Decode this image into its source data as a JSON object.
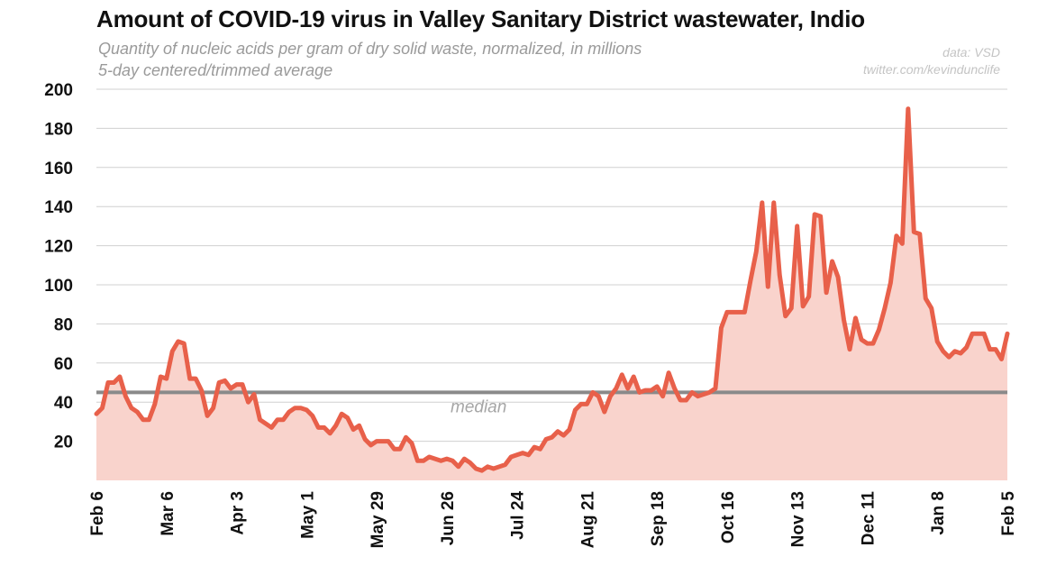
{
  "colors": {
    "line": "#e8604a",
    "fill": "#f9d3cc",
    "median_line": "#8a8a8a",
    "grid": "#d0d0d0"
  },
  "chart_data": {
    "type": "area",
    "title": "Amount of COVID-19 virus in Valley Sanitary District wastewater, Indio",
    "subtitle": [
      "Quantity of nucleic acids per gram of dry solid waste, normalized, in millions",
      "5-day centered/trimmed average"
    ],
    "credits": [
      "data: VSD",
      "twitter.com/kevindunclife"
    ],
    "xlabel": "",
    "ylabel": "",
    "ylim": [
      0,
      200
    ],
    "yticks": [
      20,
      40,
      60,
      80,
      100,
      120,
      140,
      160,
      180,
      200
    ],
    "xtick_labels": [
      "Feb 6",
      "Mar 6",
      "Apr 3",
      "May 1",
      "May 29",
      "Jun 26",
      "Jul 24",
      "Aug 21",
      "Sep 18",
      "Oct 16",
      "Nov 13",
      "Dec 11",
      "Jan 8",
      "Feb 5"
    ],
    "x_interval_days": 2,
    "median": {
      "value": 45,
      "label": "median"
    },
    "series": [
      {
        "name": "5-day centered/trimmed average",
        "values": [
          34,
          37,
          50,
          50,
          53,
          43,
          37,
          35,
          31,
          31,
          39,
          53,
          52,
          66,
          71,
          70,
          52,
          52,
          46,
          33,
          37,
          50,
          51,
          47,
          49,
          49,
          40,
          44,
          31,
          29,
          27,
          31,
          31,
          35,
          37,
          37,
          36,
          33,
          27,
          27,
          24,
          28,
          34,
          32,
          26,
          28,
          21,
          18,
          20,
          20,
          20,
          16,
          16,
          22,
          19,
          10,
          10,
          12,
          11,
          10,
          11,
          10,
          7,
          11,
          9,
          6,
          5,
          7,
          6,
          7,
          8,
          12,
          13,
          14,
          13,
          17,
          16,
          21,
          22,
          25,
          23,
          26,
          36,
          39,
          39,
          45,
          43,
          35,
          43,
          47,
          54,
          47,
          53,
          45,
          46,
          46,
          48,
          43,
          55,
          47,
          41,
          41,
          45,
          43,
          44,
          45,
          47,
          78,
          86,
          86,
          86,
          86,
          102,
          117,
          142,
          99,
          142,
          105,
          84,
          88,
          130,
          89,
          94,
          136,
          135,
          96,
          112,
          104,
          82,
          67,
          83,
          72,
          70,
          70,
          77,
          88,
          101,
          125,
          121,
          190,
          127,
          126,
          93,
          88,
          71,
          66,
          63,
          66,
          65,
          68,
          75,
          75,
          75,
          67,
          67,
          62,
          75
        ]
      }
    ]
  }
}
